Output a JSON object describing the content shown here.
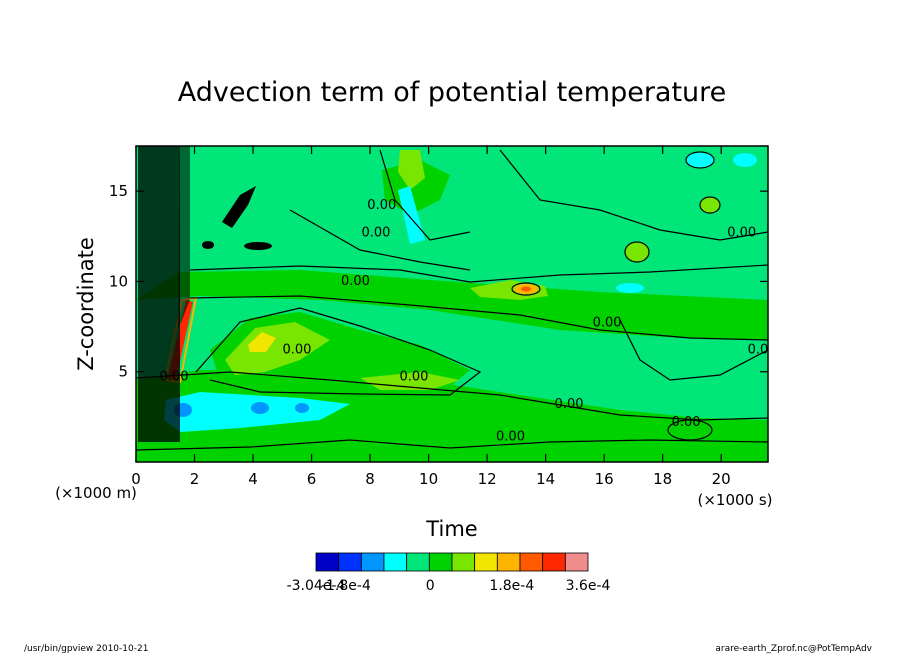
{
  "chart_data": {
    "type": "heatmap",
    "title": "Advection term of potential temperature",
    "xlabel": "Time",
    "ylabel": "Z-coordinate",
    "x_unit": "(×1000 s)",
    "y_unit": "(×1000 m)",
    "xlim": [
      0,
      21.6
    ],
    "ylim": [
      0,
      17.5
    ],
    "x_ticks": [
      0,
      2,
      4,
      6,
      8,
      10,
      12,
      14,
      16,
      18,
      20
    ],
    "y_ticks": [
      5,
      10,
      15
    ],
    "contour_label": "0.00",
    "colorbar": {
      "min": -0.000304,
      "max": 0.00036,
      "colors": [
        "#0000c8",
        "#0032ff",
        "#0096ff",
        "#00ffff",
        "#00e678",
        "#00d200",
        "#78e600",
        "#f0e600",
        "#ffb400",
        "#ff5a00",
        "#ff2800",
        "#f08c8c"
      ],
      "tick_labels": [
        "-3.04e-4",
        "-1.8e-4",
        "0",
        "1.8e-4",
        "3.6e-4"
      ]
    }
  },
  "footer": {
    "left": "/usr/bin/gpview   2010-10-21",
    "right": "arare-earth_Zprof.nc@PotTempAdv"
  }
}
